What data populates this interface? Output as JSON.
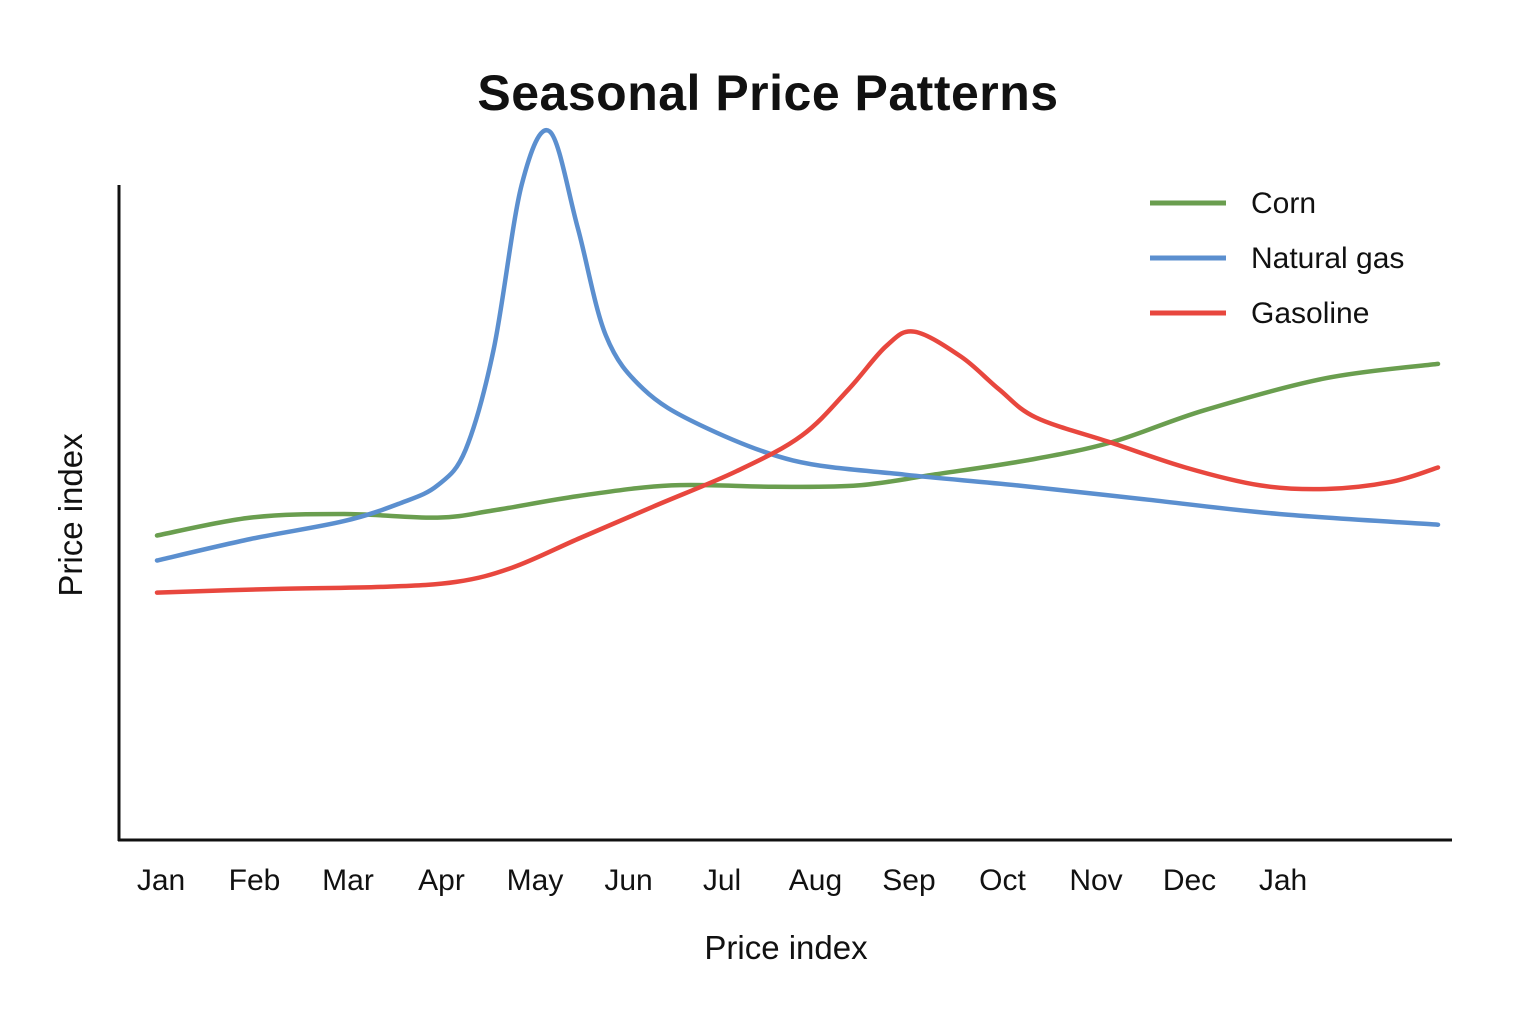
{
  "chart_data": {
    "type": "line",
    "title": "Seasonal Price Patterns",
    "xlabel": "Price index",
    "ylabel": "Price index",
    "categories": [
      "Jan",
      "Feb",
      "Mar",
      "Apr",
      "May",
      "Jun",
      "Jul",
      "Aug",
      "Sep",
      "Oct",
      "Nov",
      "Dec",
      "Jah"
    ],
    "ylim": [
      0,
      100
    ],
    "grid": false,
    "legend_position": "top-right",
    "series": [
      {
        "name": "Corn",
        "color": "#6a9e4f",
        "points": [
          [
            0,
            37
          ],
          [
            1,
            39.5
          ],
          [
            2,
            40
          ],
          [
            3,
            39.5
          ],
          [
            3.6,
            40.5
          ],
          [
            4.5,
            42.5
          ],
          [
            5.5,
            44
          ],
          [
            6.6,
            43.8
          ],
          [
            7.5,
            44
          ],
          [
            8.3,
            45.5
          ],
          [
            9.3,
            47.5
          ],
          [
            10.2,
            50
          ],
          [
            11.2,
            54.5
          ],
          [
            12.5,
            59
          ],
          [
            13.7,
            61
          ]
        ]
      },
      {
        "name": "Natural gas",
        "color": "#5b8fcf",
        "points": [
          [
            0,
            33.5
          ],
          [
            1,
            36.5
          ],
          [
            2,
            39
          ],
          [
            2.6,
            41.5
          ],
          [
            3,
            44
          ],
          [
            3.3,
            49
          ],
          [
            3.6,
            63
          ],
          [
            3.9,
            86
          ],
          [
            4.2,
            93.5
          ],
          [
            4.5,
            80
          ],
          [
            4.8,
            65
          ],
          [
            5.2,
            57.5
          ],
          [
            5.8,
            52.5
          ],
          [
            6.8,
            47.5
          ],
          [
            8,
            45.5
          ],
          [
            9.2,
            44
          ],
          [
            10.6,
            42
          ],
          [
            12,
            40
          ],
          [
            13.7,
            38.5
          ]
        ]
      },
      {
        "name": "Gasoline",
        "color": "#e8473e",
        "points": [
          [
            0,
            29
          ],
          [
            1.2,
            29.5
          ],
          [
            2.4,
            29.8
          ],
          [
            3.2,
            30.5
          ],
          [
            3.8,
            32.5
          ],
          [
            4.5,
            36.5
          ],
          [
            5.3,
            41
          ],
          [
            6.2,
            46
          ],
          [
            6.9,
            51
          ],
          [
            7.4,
            57.5
          ],
          [
            7.8,
            63.5
          ],
          [
            8.1,
            65.5
          ],
          [
            8.6,
            62
          ],
          [
            9.0,
            57.5
          ],
          [
            9.4,
            53.5
          ],
          [
            10.2,
            50
          ],
          [
            11.0,
            46.5
          ],
          [
            11.8,
            44
          ],
          [
            12.5,
            43.5
          ],
          [
            13.2,
            44.5
          ],
          [
            13.7,
            46.5
          ]
        ]
      }
    ]
  }
}
